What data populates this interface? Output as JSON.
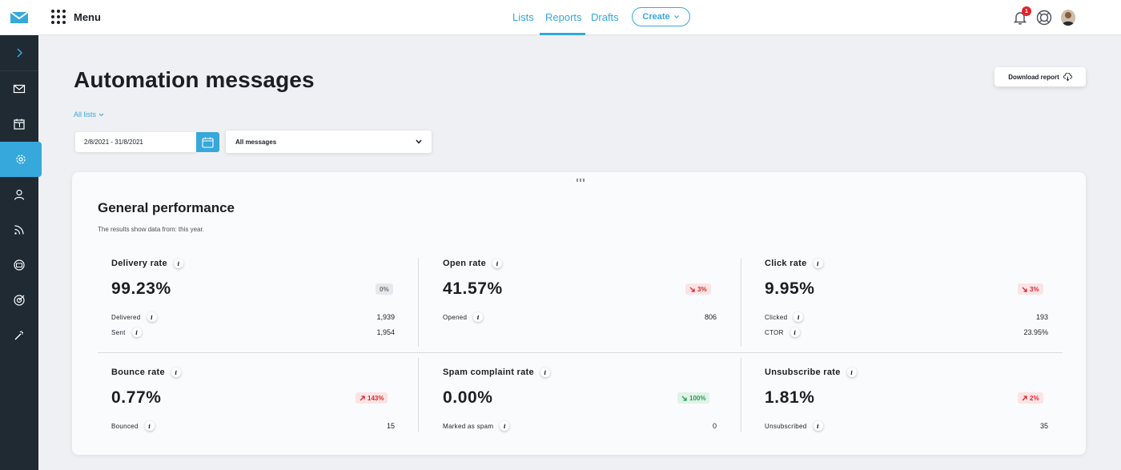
{
  "topbar": {
    "menu_label": "Menu",
    "tabs": [
      {
        "label": "Lists"
      },
      {
        "label": "Reports"
      },
      {
        "label": "Drafts"
      }
    ],
    "active_tab": "Reports",
    "create_label": "Create",
    "notification_count": "1"
  },
  "sidebar": {
    "items": [
      {
        "icon": "chevron-right-icon"
      },
      {
        "icon": "mail-icon"
      },
      {
        "icon": "calendar-icon"
      },
      {
        "icon": "gear-icon",
        "active": true
      },
      {
        "icon": "user-icon"
      },
      {
        "icon": "rss-icon"
      },
      {
        "icon": "webinar-icon"
      },
      {
        "icon": "target-icon"
      },
      {
        "icon": "magic-wand-icon"
      }
    ]
  },
  "page": {
    "title": "Automation messages",
    "download_label": "Download report",
    "lists_filter": "All lists",
    "date_range": "2/8/2021 - 31/8/2021",
    "messages_filter": "All messages"
  },
  "performance": {
    "title": "General performance",
    "subtitle": "The results show data from: this year.",
    "metrics": [
      {
        "title": "Delivery rate",
        "value": "99.23%",
        "delta": "0%",
        "trend": "neutral",
        "rows": [
          {
            "label": "Delivered",
            "value": "1,939"
          },
          {
            "label": "Sent",
            "value": "1,954"
          }
        ]
      },
      {
        "title": "Open rate",
        "value": "41.57%",
        "delta": "3%",
        "trend": "down-bad",
        "rows": [
          {
            "label": "Opened",
            "value": "806"
          }
        ]
      },
      {
        "title": "Click rate",
        "value": "9.95%",
        "delta": "3%",
        "trend": "down-bad",
        "rows": [
          {
            "label": "Clicked",
            "value": "193"
          },
          {
            "label": "CTOR",
            "value": "23.95%"
          }
        ]
      },
      {
        "title": "Bounce rate",
        "value": "0.77%",
        "delta": "143%",
        "trend": "up-bad",
        "rows": [
          {
            "label": "Bounced",
            "value": "15"
          }
        ]
      },
      {
        "title": "Spam complaint rate",
        "value": "0.00%",
        "delta": "100%",
        "trend": "down-good",
        "rows": [
          {
            "label": "Marked as spam",
            "value": "0"
          }
        ]
      },
      {
        "title": "Unsubscribe rate",
        "value": "1.81%",
        "delta": "2%",
        "trend": "up-bad",
        "rows": [
          {
            "label": "Unsubscribed",
            "value": "35"
          }
        ]
      }
    ]
  },
  "colors": {
    "accent": "#36a8dc",
    "sidebar": "#1f2a33",
    "bad": "#d92a32",
    "good": "#2f9a54"
  }
}
